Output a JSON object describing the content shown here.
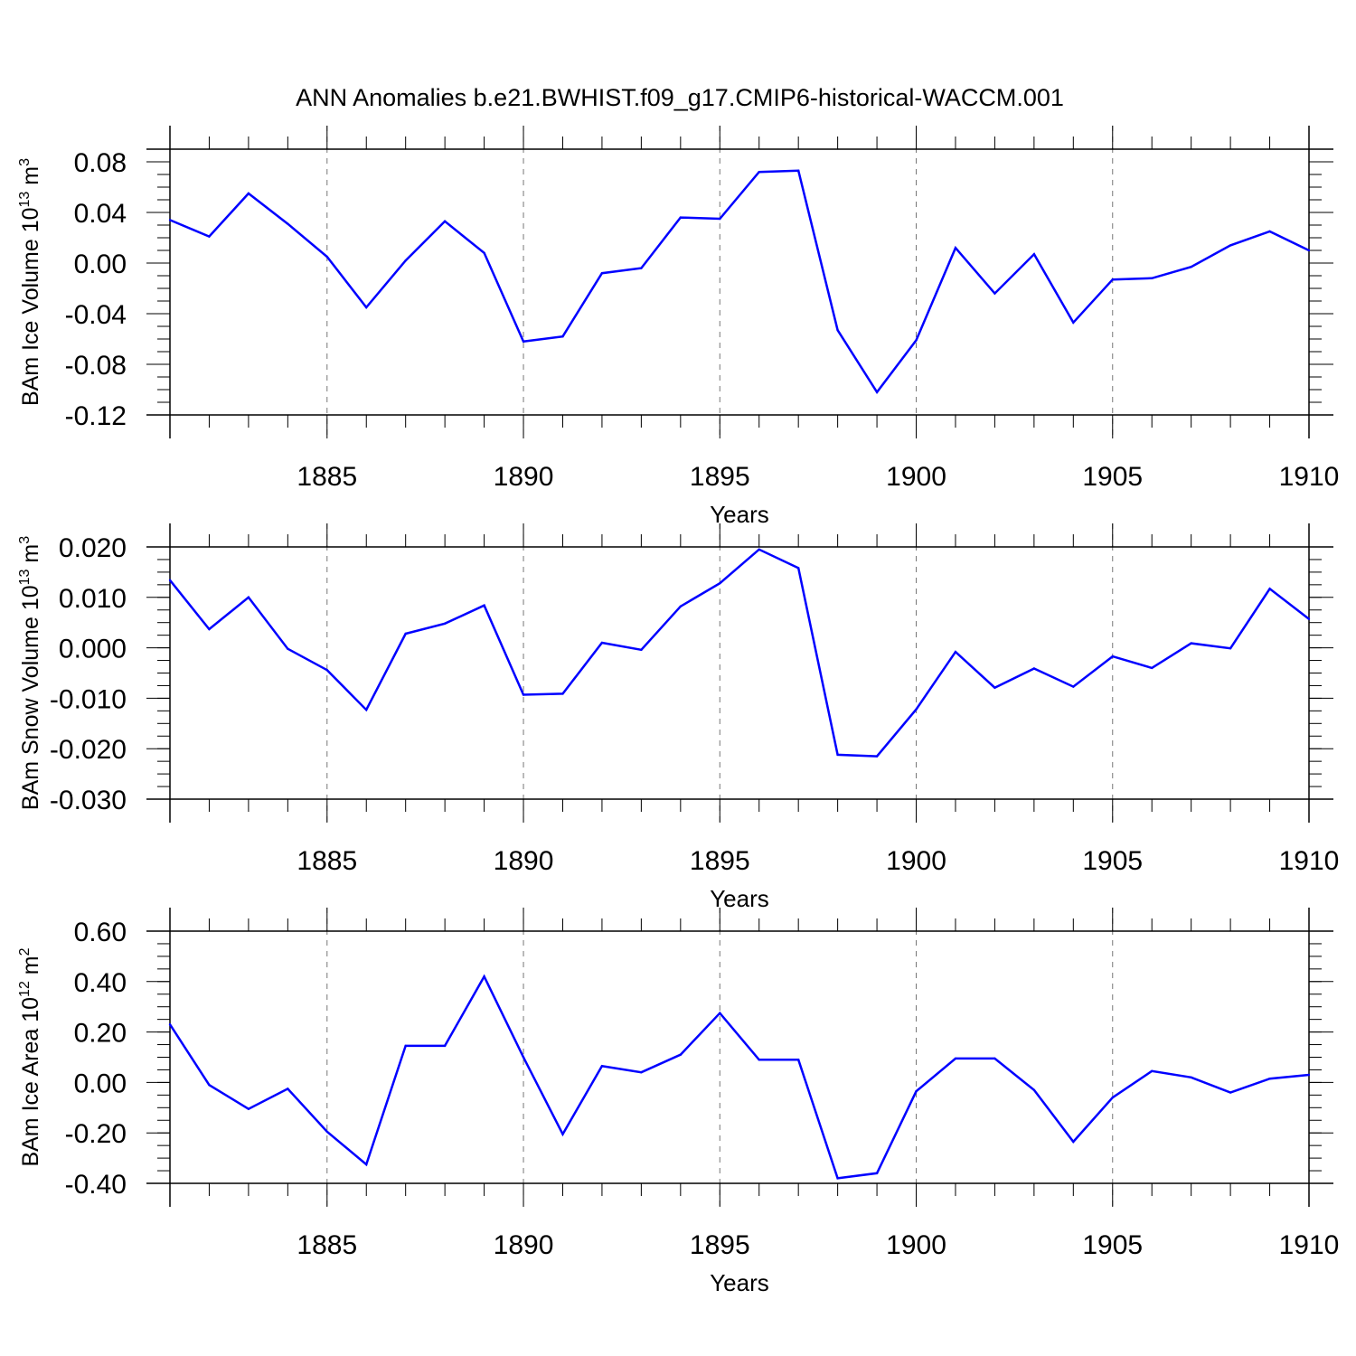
{
  "title": "ANN Anomalies b.e21.BWHIST.f09_g17.CMIP6-historical-WACCM.001",
  "line_color": "#0000ff",
  "grid": "dashed vertical lines at labeled years",
  "chart_data": [
    {
      "type": "line",
      "ylabel": "BAm Ice Volume",
      "unit_base": "10",
      "unit_exp": "13",
      "unit_suffix": "m",
      "unit_suffix_exp": "3",
      "xlabel": "Years",
      "xlim": [
        1881,
        1910
      ],
      "ylim": [
        -0.12,
        0.09
      ],
      "yticks": [
        0.08,
        0.04,
        0.0,
        -0.04,
        -0.08,
        -0.12
      ],
      "ytick_labels": [
        "0.08",
        "0.04",
        "0.00",
        "-0.04",
        "-0.08",
        "-0.12"
      ],
      "xticks": [
        1885,
        1890,
        1895,
        1900,
        1905,
        1910
      ],
      "xtick_labels": [
        "1885",
        "1890",
        "1895",
        "1900",
        "1905",
        "1910"
      ],
      "x": [
        1881,
        1882,
        1883,
        1884,
        1885,
        1886,
        1887,
        1888,
        1889,
        1890,
        1891,
        1892,
        1893,
        1894,
        1895,
        1896,
        1897,
        1898,
        1899,
        1900,
        1901,
        1902,
        1903,
        1904,
        1905,
        1906,
        1907,
        1908,
        1909,
        1910
      ],
      "y": [
        0.034,
        0.021,
        0.055,
        0.031,
        0.005,
        -0.035,
        0.002,
        0.033,
        0.008,
        -0.062,
        -0.058,
        -0.008,
        -0.004,
        0.036,
        0.035,
        0.072,
        0.073,
        -0.053,
        -0.102,
        -0.061,
        0.012,
        -0.024,
        0.007,
        -0.047,
        -0.013,
        -0.012,
        -0.003,
        0.014,
        0.025,
        0.01
      ]
    },
    {
      "type": "line",
      "ylabel": "BAm Snow Volume",
      "unit_base": "10",
      "unit_exp": "13",
      "unit_suffix": "m",
      "unit_suffix_exp": "3",
      "xlabel": "Years",
      "xlim": [
        1881,
        1910
      ],
      "ylim": [
        -0.03,
        0.02
      ],
      "yticks": [
        0.02,
        0.01,
        0.0,
        -0.01,
        -0.02,
        -0.03
      ],
      "ytick_labels": [
        "0.020",
        "0.010",
        "0.000",
        "-0.010",
        "-0.020",
        "-0.030"
      ],
      "xticks": [
        1885,
        1890,
        1895,
        1900,
        1905,
        1910
      ],
      "xtick_labels": [
        "1885",
        "1890",
        "1895",
        "1900",
        "1905",
        "1910"
      ],
      "x": [
        1881,
        1882,
        1883,
        1884,
        1885,
        1886,
        1887,
        1888,
        1889,
        1890,
        1891,
        1892,
        1893,
        1894,
        1895,
        1896,
        1897,
        1898,
        1899,
        1900,
        1901,
        1902,
        1903,
        1904,
        1905,
        1906,
        1907,
        1908,
        1909,
        1910
      ],
      "y": [
        0.0134,
        0.0037,
        0.01,
        -0.0002,
        -0.0044,
        -0.0123,
        0.0028,
        0.0048,
        0.0084,
        -0.0093,
        -0.0091,
        0.001,
        -0.0004,
        0.0082,
        0.0128,
        0.0195,
        0.0158,
        -0.0212,
        -0.0215,
        -0.0122,
        -0.0008,
        -0.0079,
        -0.0041,
        -0.0077,
        -0.0017,
        -0.004,
        0.0009,
        -0.0001,
        0.0117,
        0.0057
      ]
    },
    {
      "type": "line",
      "ylabel": "BAm Ice Area",
      "unit_base": "10",
      "unit_exp": "12",
      "unit_suffix": "m",
      "unit_suffix_exp": "2",
      "xlabel": "Years",
      "xlim": [
        1881,
        1910
      ],
      "ylim": [
        -0.4,
        0.6
      ],
      "yticks": [
        0.6,
        0.4,
        0.2,
        0.0,
        -0.2,
        -0.4
      ],
      "ytick_labels": [
        "0.60",
        "0.40",
        "0.20",
        "0.00",
        "-0.20",
        "-0.40"
      ],
      "xticks": [
        1885,
        1890,
        1895,
        1900,
        1905,
        1910
      ],
      "xtick_labels": [
        "1885",
        "1890",
        "1895",
        "1900",
        "1905",
        "1910"
      ],
      "x": [
        1881,
        1882,
        1883,
        1884,
        1885,
        1886,
        1887,
        1888,
        1889,
        1890,
        1891,
        1892,
        1893,
        1894,
        1895,
        1896,
        1897,
        1898,
        1899,
        1900,
        1901,
        1902,
        1903,
        1904,
        1905,
        1906,
        1907,
        1908,
        1909,
        1910
      ],
      "y": [
        0.23,
        -0.01,
        -0.105,
        -0.025,
        -0.195,
        -0.325,
        0.145,
        0.145,
        0.42,
        0.1,
        -0.205,
        0.065,
        0.04,
        0.11,
        0.275,
        0.09,
        0.09,
        -0.38,
        -0.36,
        -0.035,
        0.095,
        0.095,
        -0.03,
        -0.235,
        -0.06,
        0.045,
        0.02,
        -0.04,
        0.015,
        0.03
      ]
    }
  ]
}
